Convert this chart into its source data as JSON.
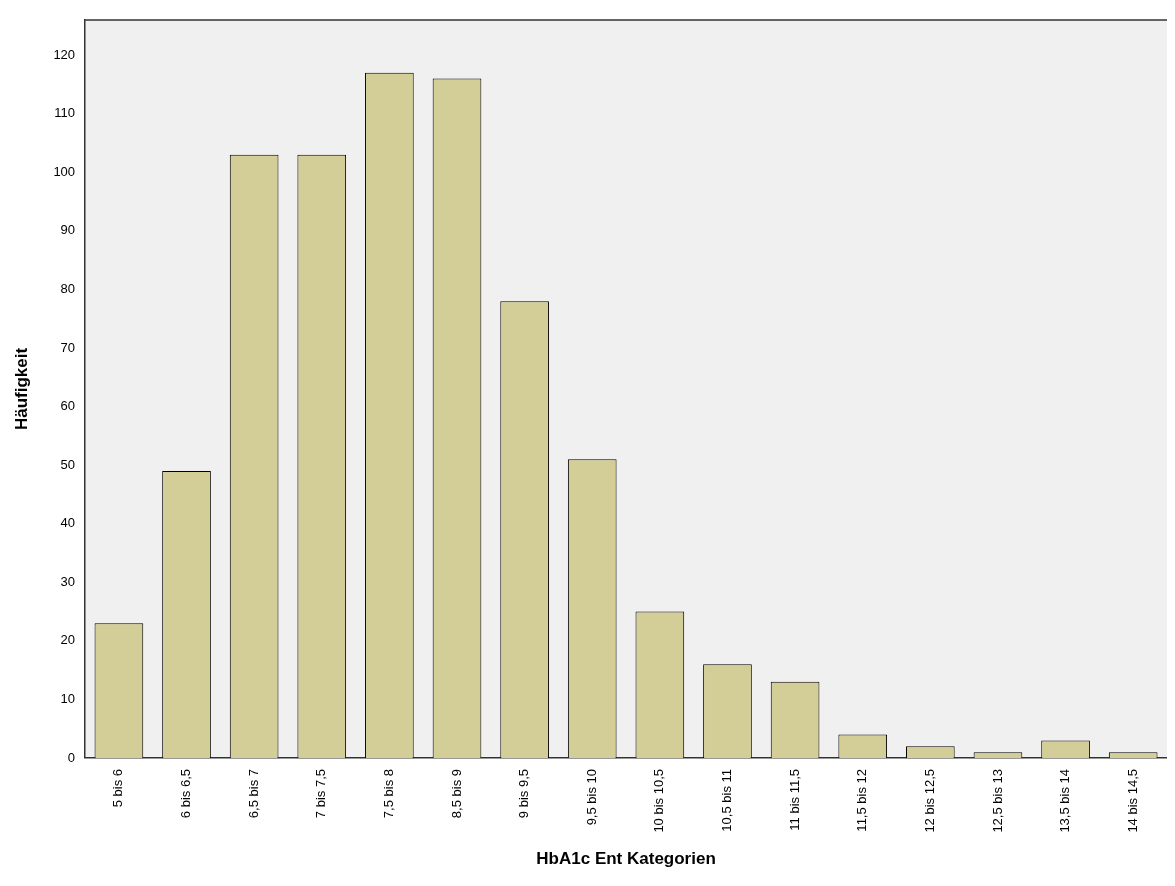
{
  "chart_data": {
    "type": "bar",
    "xlabel": "HbA1c Ent Kategorien",
    "ylabel": "Häufigkeit",
    "categories": [
      "5 bis 6",
      "6 bis 6,5",
      "6,5 bis 7",
      "7 bis 7,5",
      "7,5 bis 8",
      "8,5 bis 9",
      "9 bis 9,5",
      "9,5 bis 10",
      "10 bis 10,5",
      "10,5 bis 11",
      "11 bis 11,5",
      "11,5 bis 12",
      "12 bis 12,5",
      "12,5 bis 13",
      "13,5 bis 14",
      "14 bis 14,5"
    ],
    "values": [
      23,
      49,
      103,
      103,
      117,
      116,
      78,
      51,
      25,
      16,
      13,
      4,
      2,
      1,
      3,
      1
    ],
    "color": "#d3ce97",
    "ylim": [
      0,
      126
    ],
    "yticks": [
      0,
      10,
      20,
      30,
      40,
      50,
      60,
      70,
      80,
      90,
      100,
      110,
      120
    ],
    "grid": false,
    "legend": false
  }
}
